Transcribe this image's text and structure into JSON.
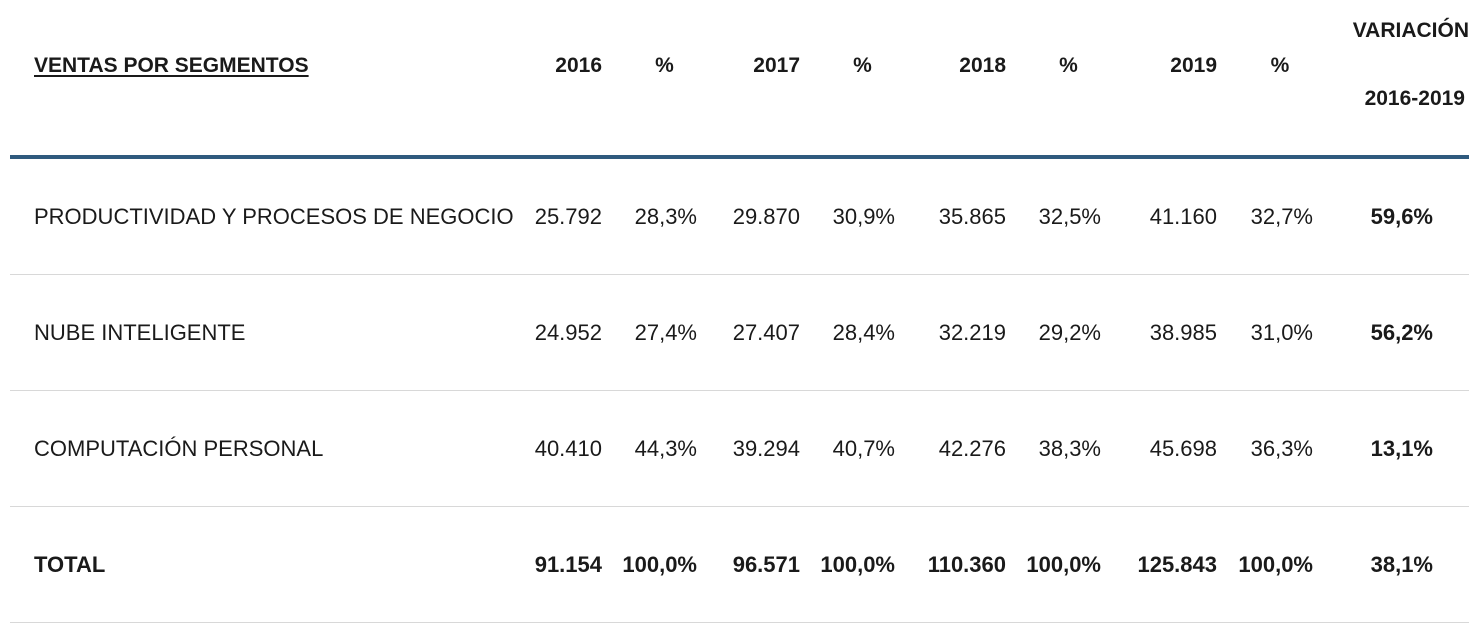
{
  "header": {
    "title": "VENTAS POR SEGMENTOS",
    "col_2016": "2016",
    "pct_2016": "%",
    "col_2017": "2017",
    "pct_2017": "%",
    "col_2018": "2018",
    "pct_2018": "%",
    "col_2019": "2019",
    "pct_2019": "%",
    "variation_line1": "VARIACIÓN",
    "variation_line2": "2016-2019"
  },
  "rows": [
    {
      "label": "PRODUCTIVIDAD Y PROCESOS DE NEGOCIO",
      "v2016": "25.792",
      "p2016": "28,3%",
      "v2017": "29.870",
      "p2017": "30,9%",
      "v2018": "35.865",
      "p2018": "32,5%",
      "v2019": "41.160",
      "p2019": "32,7%",
      "variation": "59,6%"
    },
    {
      "label": "NUBE INTELIGENTE",
      "v2016": "24.952",
      "p2016": "27,4%",
      "v2017": "27.407",
      "p2017": "28,4%",
      "v2018": "32.219",
      "p2018": "29,2%",
      "v2019": "38.985",
      "p2019": "31,0%",
      "variation": "56,2%"
    },
    {
      "label": "COMPUTACIÓN PERSONAL",
      "v2016": "40.410",
      "p2016": "44,3%",
      "v2017": "39.294",
      "p2017": "40,7%",
      "v2018": "42.276",
      "p2018": "38,3%",
      "v2019": "45.698",
      "p2019": "36,3%",
      "variation": "13,1%"
    },
    {
      "label": "TOTAL",
      "v2016": "91.154",
      "p2016": "100,0%",
      "v2017": "96.571",
      "p2017": "100,0%",
      "v2018": "110.360",
      "p2018": "100,0%",
      "v2019": "125.843",
      "p2019": "100,0%",
      "variation": "38,1%"
    }
  ],
  "colors": {
    "header_divider": "#2f5a7e",
    "row_divider": "#d8d8d8",
    "text": "#1a1a1a"
  }
}
